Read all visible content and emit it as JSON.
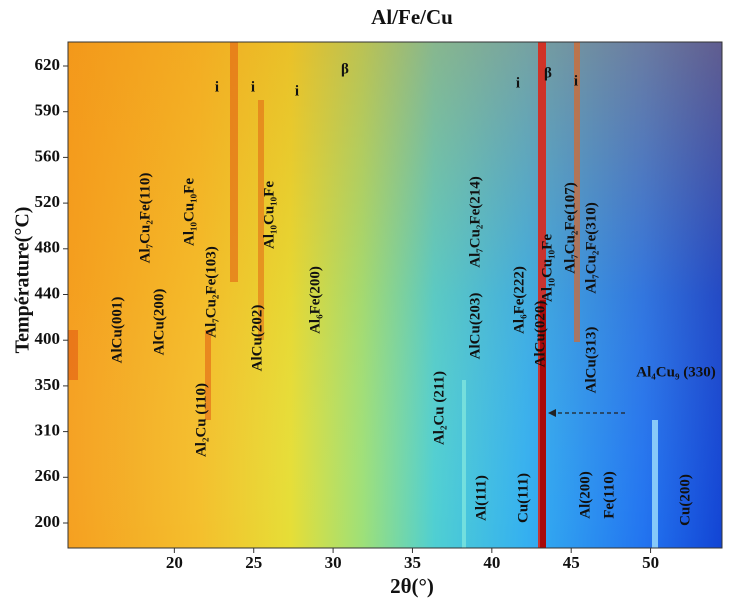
{
  "chart_data": {
    "type": "heatmap",
    "title": "Al/Fe/Cu",
    "x_label": "2θ(°)",
    "y_label": "Température(°C)",
    "xlim": [
      13.3,
      54.5
    ],
    "xticks": [
      20,
      25,
      30,
      35,
      40,
      45,
      50
    ],
    "yscale": "index",
    "yticks": [
      620,
      590,
      560,
      520,
      480,
      440,
      400,
      350,
      310,
      260,
      200
    ],
    "annotations": [
      "AlCu(001)",
      "AlCu(200)",
      "Al₇Cu₂Fe(110)",
      "Al₁₀Cu₁₀Fe",
      "Al₇Cu₂Fe(103)",
      "Al₂Cu (110)",
      "AlCu(202)",
      "Al₁₀Cu₁₀Fe",
      "Al₆Fe(200)",
      "Al₂Cu (211)",
      "AlCu(203)",
      "Al₇Cu₂Fe(214)",
      "Al₆Fe(222)",
      "AlCu(020)",
      "Al₁₀Cu₁₀Fe",
      "Al₇Cu₂Fe(107)",
      "Al₇Cu₂Fe(310)",
      "AlCu(313)",
      "Al₄Cu₉ (330)",
      "Al(111)",
      "Cu(111)",
      "Al(200)",
      "Fe(110)",
      "Cu(200)",
      "i",
      "i",
      "i",
      "i",
      "i",
      "β",
      "β"
    ]
  }
}
